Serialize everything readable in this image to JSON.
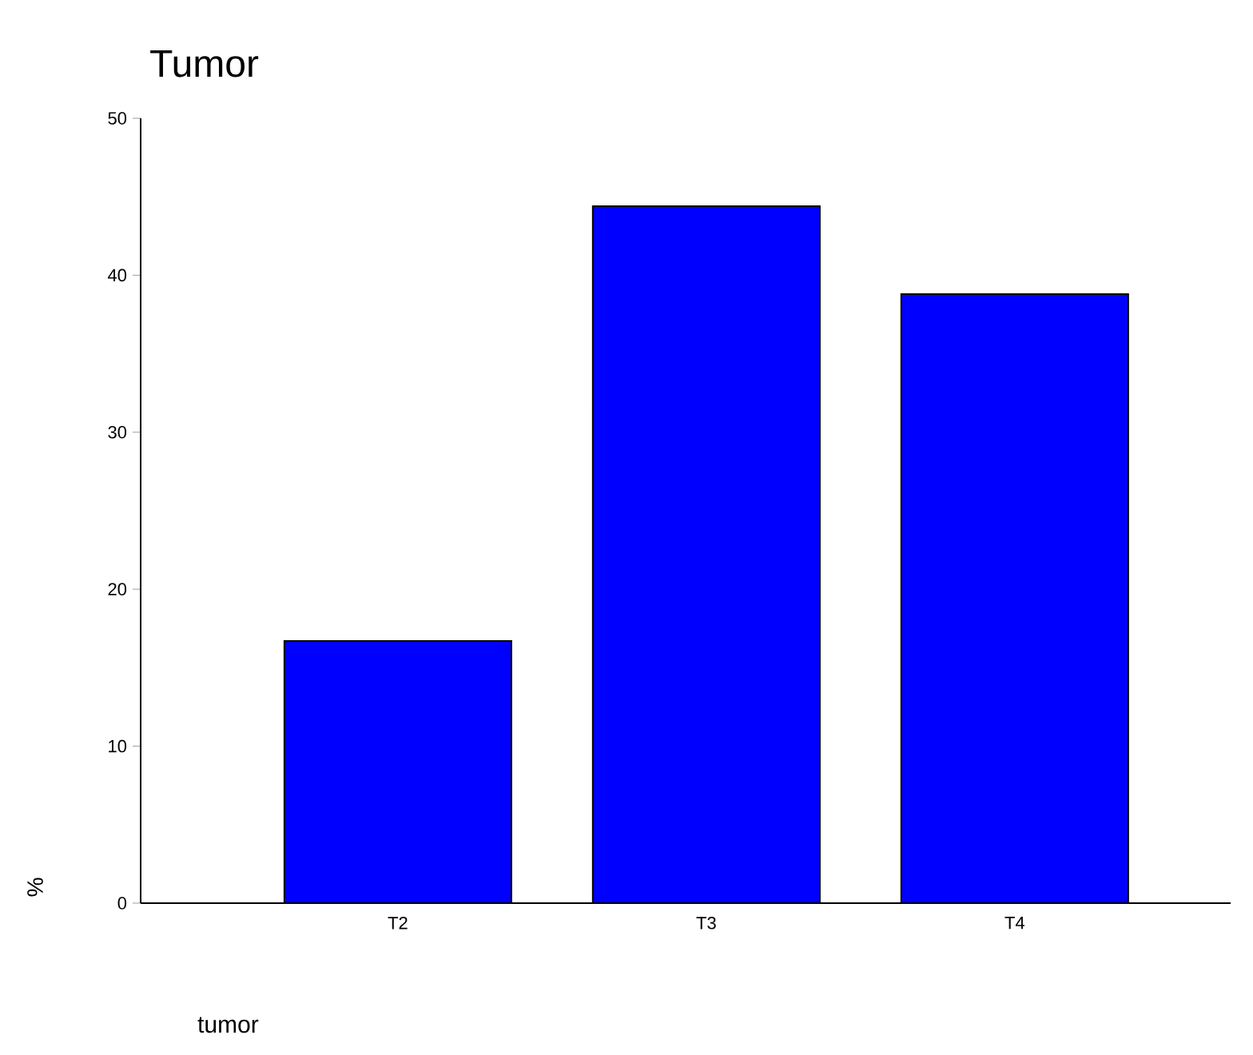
{
  "chart_data": {
    "type": "bar",
    "title": "Tumor",
    "xlabel": "tumor",
    "ylabel": "%",
    "categories": [
      "T2",
      "T3",
      "T4"
    ],
    "values": [
      16.7,
      44.4,
      38.8
    ],
    "color": "#0000ff",
    "ylim": [
      0,
      50
    ],
    "yticks": [
      0,
      10,
      20,
      30,
      40,
      50
    ],
    "grid": false
  }
}
